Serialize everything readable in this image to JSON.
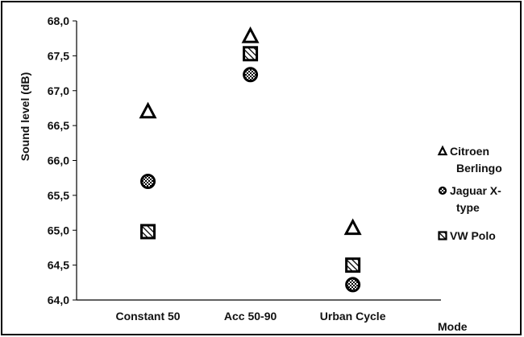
{
  "chart_data": {
    "type": "scatter",
    "title": "",
    "xlabel": "Mode",
    "ylabel": "Sound level (dB)",
    "categories": [
      "Constant 50",
      "Acc 50-90",
      "Urban Cycle"
    ],
    "ylim": [
      64.0,
      68.0
    ],
    "yticks": [
      "64,0",
      "64,5",
      "65,0",
      "65,5",
      "66,0",
      "66,5",
      "67,0",
      "67,5",
      "68,0"
    ],
    "grid": false,
    "legend_position": "right",
    "series": [
      {
        "name_lines": [
          "Citroen",
          "Berlingo"
        ],
        "marker": "triangle",
        "values": [
          66.7,
          67.78,
          65.03
        ]
      },
      {
        "name_lines": [
          "Jaguar X-",
          "type"
        ],
        "marker": "dotted-circle",
        "values": [
          65.7,
          67.23,
          64.22
        ]
      },
      {
        "name_lines": [
          "VW Polo"
        ],
        "marker": "hatched-square",
        "values": [
          64.98,
          67.53,
          64.5
        ]
      }
    ]
  }
}
